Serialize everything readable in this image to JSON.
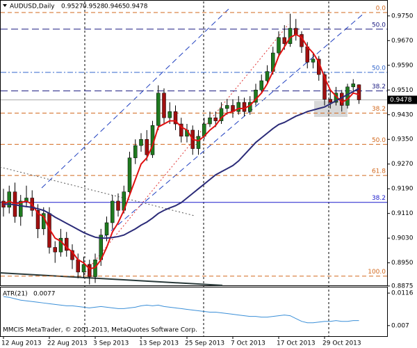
{
  "chart_data": {
    "type": "candlestick",
    "symbol": "AUDUSD,Daily",
    "footer": "MMCIS MetaTrader, © 2001-2013, MetaQuotes Software Corp.",
    "categories": [
      "12 Aug 2013",
      null,
      null,
      null,
      null,
      null,
      null,
      null,
      "22 Aug 2013",
      null,
      null,
      null,
      null,
      null,
      null,
      null,
      "3 Sep 2013",
      null,
      null,
      null,
      null,
      null,
      null,
      null,
      "13 Sep 2013",
      null,
      null,
      null,
      null,
      null,
      null,
      null,
      "25 Sep 2013",
      null,
      null,
      null,
      null,
      null,
      null,
      null,
      "7 Oct 2013",
      null,
      null,
      null,
      null,
      null,
      null,
      null,
      "17 Oct 2013",
      null,
      null,
      null,
      null,
      null,
      null,
      null,
      "29 Oct 2013",
      null,
      null,
      null,
      null,
      null,
      null
    ],
    "open": [
      0.915,
      0.913,
      0.918,
      0.91,
      0.915,
      0.916,
      0.912,
      0.906,
      0.911,
      0.9,
      0.8985,
      0.903,
      0.899,
      0.896,
      0.892,
      0.8945,
      0.8905,
      0.896,
      0.904,
      0.908,
      0.915,
      0.912,
      0.918,
      0.929,
      0.933,
      0.935,
      0.93,
      0.9395,
      0.95,
      0.942,
      0.944,
      0.94,
      0.936,
      0.938,
      0.932,
      0.936,
      0.94,
      0.942,
      0.941,
      0.945,
      0.946,
      0.944,
      0.947,
      0.944,
      0.947,
      0.951,
      0.954,
      0.957,
      0.963,
      0.968,
      0.966,
      0.971,
      0.969,
      0.965,
      0.96,
      0.961,
      0.956,
      0.948,
      0.947,
      0.95,
      0.946,
      0.952,
      0.9527
    ],
    "high": [
      0.919,
      0.92,
      0.921,
      0.917,
      0.92,
      0.9185,
      0.914,
      0.913,
      0.913,
      0.902,
      0.906,
      0.905,
      0.901,
      0.898,
      0.897,
      0.896,
      0.898,
      0.906,
      0.91,
      0.917,
      0.9175,
      0.92,
      0.931,
      0.935,
      0.937,
      0.938,
      0.941,
      0.9525,
      0.9515,
      0.947,
      0.946,
      0.942,
      0.94,
      0.9395,
      0.938,
      0.942,
      0.944,
      0.944,
      0.947,
      0.948,
      0.948,
      0.949,
      0.9485,
      0.949,
      0.953,
      0.956,
      0.959,
      0.965,
      0.97,
      0.972,
      0.9757,
      0.974,
      0.97,
      0.9665,
      0.963,
      0.962,
      0.957,
      0.951,
      0.952,
      0.951,
      0.953,
      0.9545,
      0.9528
    ],
    "low": [
      0.91,
      0.911,
      0.908,
      0.907,
      0.913,
      0.91,
      0.903,
      0.904,
      0.898,
      0.895,
      0.897,
      0.897,
      0.893,
      0.89,
      0.89,
      0.888,
      0.8885,
      0.894,
      0.902,
      0.906,
      0.91,
      0.911,
      0.917,
      0.927,
      0.931,
      0.928,
      0.929,
      0.938,
      0.94,
      0.94,
      0.938,
      0.934,
      0.934,
      0.93,
      0.93,
      0.935,
      0.939,
      0.939,
      0.94,
      0.943,
      0.942,
      0.943,
      0.9425,
      0.943,
      0.946,
      0.95,
      0.953,
      0.956,
      0.962,
      0.964,
      0.965,
      0.967,
      0.963,
      0.958,
      0.958,
      0.954,
      0.946,
      0.945,
      0.946,
      0.944,
      0.945,
      0.95,
      0.9465
    ],
    "close": [
      0.913,
      0.918,
      0.91,
      0.915,
      0.916,
      0.912,
      0.906,
      0.911,
      0.9,
      0.8985,
      0.903,
      0.899,
      0.896,
      0.892,
      0.8945,
      0.8905,
      0.896,
      0.904,
      0.908,
      0.915,
      0.912,
      0.918,
      0.929,
      0.933,
      0.935,
      0.93,
      0.9395,
      0.95,
      0.942,
      0.944,
      0.94,
      0.936,
      0.938,
      0.932,
      0.936,
      0.94,
      0.942,
      0.941,
      0.945,
      0.946,
      0.944,
      0.947,
      0.944,
      0.947,
      0.951,
      0.954,
      0.957,
      0.963,
      0.968,
      0.966,
      0.971,
      0.969,
      0.965,
      0.96,
      0.961,
      0.956,
      0.948,
      0.947,
      0.95,
      0.946,
      0.952,
      0.953,
      0.9478
    ],
    "up_color": "#1f7a1f",
    "down_color": "#a01010",
    "lines": [
      {
        "color": "#e01010",
        "values": [
          0.914,
          0.915,
          0.914,
          0.9145,
          0.915,
          0.914,
          0.911,
          0.91,
          0.906,
          0.903,
          0.902,
          0.9,
          0.8985,
          0.896,
          0.895,
          0.893,
          0.8935,
          0.896,
          0.9,
          0.905,
          0.908,
          0.912,
          0.917,
          0.922,
          0.927,
          0.929,
          0.933,
          0.939,
          0.94,
          0.941,
          0.941,
          0.939,
          0.938,
          0.935,
          0.9345,
          0.936,
          0.938,
          0.9395,
          0.942,
          0.9435,
          0.944,
          0.945,
          0.945,
          0.946,
          0.948,
          0.95,
          0.953,
          0.957,
          0.962,
          0.965,
          0.968,
          0.969,
          0.968,
          0.965,
          0.963,
          0.96,
          0.955,
          0.951,
          0.949,
          0.947,
          0.948,
          0.95,
          0.9495
        ]
      },
      {
        "color": "#2b2b78",
        "values": [
          0.914,
          0.914,
          0.9138,
          0.9135,
          0.9132,
          0.913,
          0.9125,
          0.912,
          0.911,
          0.9098,
          0.9088,
          0.9078,
          0.9068,
          0.9058,
          0.9048,
          0.904,
          0.9033,
          0.903,
          0.903,
          0.9032,
          0.9035,
          0.904,
          0.905,
          0.906,
          0.9072,
          0.9082,
          0.9095,
          0.911,
          0.912,
          0.9128,
          0.9135,
          0.9145,
          0.916,
          0.9175,
          0.919,
          0.9205,
          0.922,
          0.9235,
          0.9245,
          0.9255,
          0.9265,
          0.928,
          0.93,
          0.932,
          0.934,
          0.9355,
          0.937,
          0.9385,
          0.9398,
          0.9405,
          0.9415,
          0.9425,
          0.9432,
          0.944,
          0.9445,
          0.945,
          0.9455,
          0.9465,
          0.9475,
          0.9485,
          0.9495,
          0.9505,
          0.9515
        ]
      }
    ],
    "levels": [
      {
        "label": "0.0",
        "price": 0.9761,
        "color": "#d2691e",
        "dash": "6,4"
      },
      {
        "label": "38.2",
        "price": 0.9435,
        "color": "#d2691e",
        "dash": "6,4"
      },
      {
        "label": "50.0",
        "price": 0.9334,
        "color": "#d2691e",
        "dash": "6,4"
      },
      {
        "label": "61.8",
        "price": 0.9233,
        "color": "#d2691e",
        "dash": "6,4"
      },
      {
        "label": "100.0",
        "price": 0.8907,
        "color": "#d2691e",
        "dash": "6,4"
      },
      {
        "label": "50.0",
        "price": 0.9707,
        "color": "#1a1a80",
        "dash": "10,5"
      },
      {
        "label": "50.0",
        "price": 0.9567,
        "color": "#3366cc",
        "dash": "8,3,2,3"
      },
      {
        "label": "38.2",
        "price": 0.9507,
        "color": "#1a1a80",
        "dash": "10,5"
      },
      {
        "label": "38.2",
        "price": 0.9146,
        "color": "#1a1acc",
        "dash": "none"
      }
    ],
    "ylim": [
      0.8877,
      0.9797
    ],
    "yticks": [
      {
        "value": 0.975,
        "label": "0.9750"
      },
      {
        "value": 0.967,
        "label": "0.9670"
      },
      {
        "value": 0.959,
        "label": "0.9590"
      },
      {
        "value": 0.951,
        "label": "0.9510"
      },
      {
        "value": 0.943,
        "label": "0.9430"
      },
      {
        "value": 0.935,
        "label": "0.9350"
      },
      {
        "value": 0.927,
        "label": "0.9270"
      },
      {
        "value": 0.919,
        "label": "0.9190"
      },
      {
        "value": 0.911,
        "label": "0.9110"
      },
      {
        "value": 0.903,
        "label": "0.9030"
      },
      {
        "value": 0.895,
        "label": "0.8950"
      },
      0.8875
    ],
    "atr": {
      "label": "ATR(21)",
      "color": "#3a8fd8",
      "values": [
        0.0111,
        0.011,
        0.0108,
        0.0106,
        0.0105,
        0.0104,
        0.0103,
        0.0102,
        0.0101,
        0.01,
        0.0099,
        0.0098,
        0.0098,
        0.0097,
        0.0096,
        0.0095,
        0.0096,
        0.0097,
        0.0096,
        0.0095,
        0.0094,
        0.0094,
        0.0095,
        0.0096,
        0.0098,
        0.0099,
        0.0098,
        0.0099,
        0.0097,
        0.0096,
        0.0095,
        0.0094,
        0.0093,
        0.0092,
        0.0091,
        0.009,
        0.0089,
        0.0089,
        0.0088,
        0.0087,
        0.0086,
        0.0085,
        0.0084,
        0.0083,
        0.0083,
        0.0082,
        0.0082,
        0.0083,
        0.0084,
        0.0085,
        0.0084,
        0.008,
        0.0076,
        0.0074,
        0.0074,
        0.0075,
        0.0076,
        0.0076,
        0.0077,
        0.0076,
        0.0076,
        0.0077,
        0.0077
      ],
      "ylim": [
        0.0056,
        0.0123
      ],
      "yticks": [
        0.0116,
        0.007
      ]
    }
  }
}
